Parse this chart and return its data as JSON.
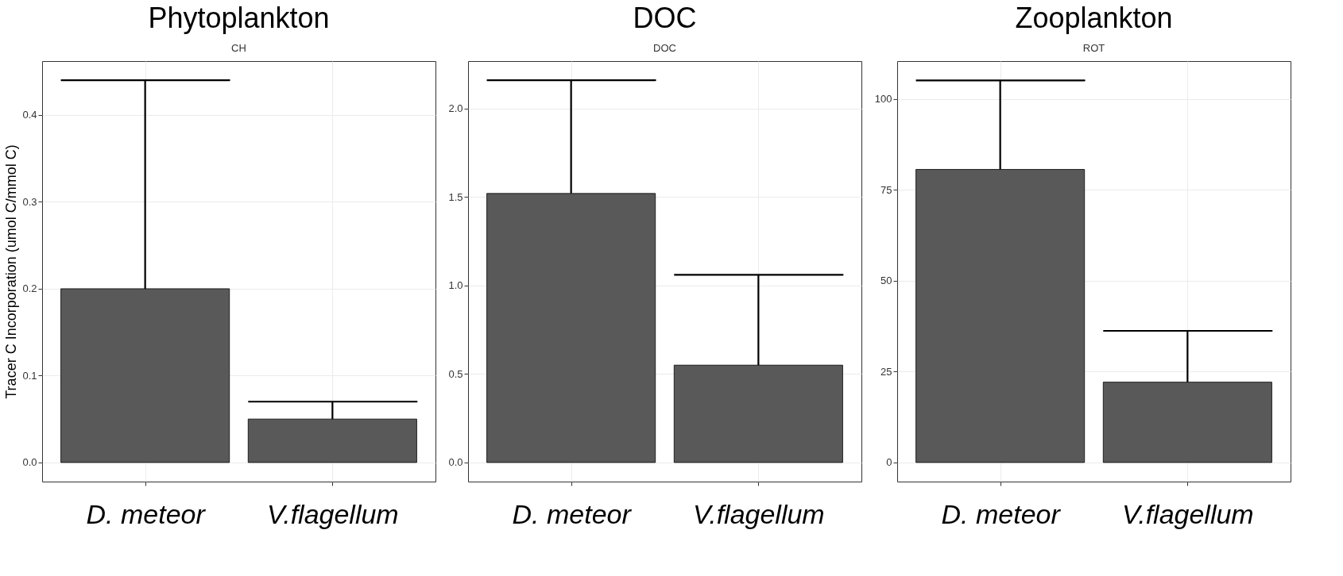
{
  "chart_data": [
    {
      "type": "bar",
      "title": "Phytoplankton",
      "subtitle": "CH",
      "ylabel": "Tracer C Incorporation (umol C/mmol C)",
      "categories": [
        "D. meteor",
        "V.flagellum"
      ],
      "values": [
        0.2,
        0.05
      ],
      "errors": [
        [
          0.2,
          0.44
        ],
        [
          0.05,
          0.07
        ]
      ],
      "color": "#595959",
      "ylim": [
        -0.022,
        0.462
      ],
      "yticks": [
        {
          "value": 0,
          "label": "0.0"
        },
        0.1,
        0.2,
        0.3,
        0.4
      ],
      "grid": true
    },
    {
      "type": "bar",
      "title": "DOC",
      "subtitle": "DOC",
      "categories": [
        "D. meteor",
        "V.flagellum"
      ],
      "values": [
        1.52,
        0.55
      ],
      "errors": [
        [
          1.52,
          2.16
        ],
        [
          0.55,
          1.06
        ]
      ],
      "color": "#595959",
      "ylim": [
        -0.108,
        2.268
      ],
      "yticks": [
        {
          "value": 0,
          "label": "0.0"
        },
        0.5,
        {
          "value": 1,
          "label": "1.0"
        },
        1.5,
        {
          "value": 2,
          "label": "2.0"
        }
      ],
      "grid": true
    },
    {
      "type": "bar",
      "title": "Zooplankton",
      "subtitle": "ROT",
      "categories": [
        "D. meteor",
        "V.flagellum"
      ],
      "values": [
        80.6,
        22.1
      ],
      "errors": [
        [
          80.6,
          105.1
        ],
        [
          22.1,
          36.2
        ]
      ],
      "color": "#595959",
      "ylim": [
        -5.26,
        110.4
      ],
      "yticks": [
        0,
        25,
        50,
        75,
        100
      ],
      "grid": true
    }
  ]
}
